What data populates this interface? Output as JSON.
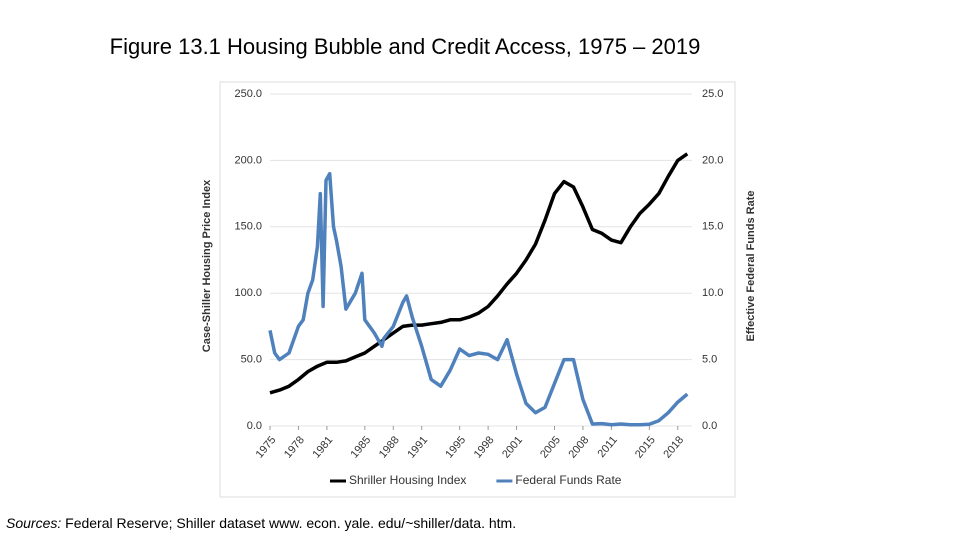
{
  "chart_data": {
    "type": "line",
    "title": "Figure 13.1 Housing Bubble and Credit Access, 1975 – 2019",
    "ylabel": "Case-Shiller Housing Price Index",
    "y2label": "Effective Federal Funds Rate",
    "source_label": "Sources:",
    "source_text": "Federal Reserve; Shiller dataset www. econ. yale. edu/~shiller/data. htm.",
    "xlim": [
      1975,
      2019.5
    ],
    "xticks": [
      1975,
      1978,
      1981,
      1985,
      1988,
      1991,
      1995,
      1998,
      2001,
      2005,
      2008,
      2011,
      2015,
      2018
    ],
    "ylim": [
      0,
      250
    ],
    "yticks": [
      {
        "value": 0,
        "label": "0.0"
      },
      {
        "value": 50,
        "label": "50.0"
      },
      {
        "value": 100,
        "label": "100.0"
      },
      {
        "value": 150,
        "label": "150.0"
      },
      {
        "value": 200,
        "label": "200.0"
      },
      {
        "value": 250,
        "label": "250.0"
      }
    ],
    "y2lim": [
      0,
      25
    ],
    "y2ticks": [
      {
        "value": 0,
        "label": "0.0"
      },
      {
        "value": 5,
        "label": "5.0"
      },
      {
        "value": 10,
        "label": "10.0"
      },
      {
        "value": 15,
        "label": "15.0"
      },
      {
        "value": 20,
        "label": "20.0"
      },
      {
        "value": 25,
        "label": "25.0"
      }
    ],
    "grid": true,
    "legend": "bottom",
    "series": [
      {
        "name": "Shriller Housing Index",
        "color": "#000000",
        "x": [
          1975,
          1976,
          1977,
          1978,
          1979,
          1980,
          1981,
          1982,
          1983,
          1984,
          1985,
          1986,
          1987,
          1988,
          1989,
          1990,
          1991,
          1992,
          1993,
          1994,
          1995,
          1996,
          1997,
          1998,
          1999,
          2000,
          2001,
          2002,
          2003,
          2004,
          2005,
          2006,
          2007,
          2008,
          2009,
          2010,
          2011,
          2012,
          2013,
          2014,
          2015,
          2016,
          2017,
          2018,
          2019
        ],
        "values": [
          25,
          27,
          30,
          35,
          41,
          45,
          48,
          48,
          49,
          52,
          55,
          60,
          65,
          70,
          75,
          76,
          76,
          77,
          78,
          80,
          80,
          82,
          85,
          90,
          98,
          107,
          115,
          125,
          137,
          155,
          175,
          184,
          180,
          165,
          148,
          145,
          140,
          138,
          150,
          160,
          167,
          175,
          188,
          200,
          205
        ]
      },
      {
        "name": "Federal Funds Rate",
        "color": "#4f81bd",
        "axis": "y2",
        "x": [
          1975,
          1975.5,
          1976,
          1977,
          1977.5,
          1978,
          1978.5,
          1979,
          1979.5,
          1980,
          1980.3,
          1980.6,
          1980.9,
          1981.3,
          1981.7,
          1982,
          1982.5,
          1983,
          1984,
          1984.7,
          1985,
          1986,
          1986.8,
          1987,
          1988,
          1989,
          1989.4,
          1990,
          1991,
          1992,
          1993,
          1994,
          1995,
          1996,
          1997,
          1998,
          1999,
          2000,
          2001,
          2002,
          2003,
          2004,
          2005,
          2006,
          2007,
          2008,
          2009,
          2010,
          2011,
          2012,
          2013,
          2014,
          2015,
          2016,
          2017,
          2018,
          2019
        ],
        "values": [
          7.2,
          5.5,
          5.0,
          5.5,
          6.5,
          7.5,
          8,
          10,
          11,
          13.5,
          17.5,
          9,
          18.5,
          19,
          15,
          14,
          12,
          8.8,
          10,
          11.5,
          8,
          7,
          6,
          6.6,
          7.5,
          9.3,
          9.8,
          8.2,
          6,
          3.5,
          3,
          4.2,
          5.8,
          5.3,
          5.5,
          5.4,
          5.0,
          6.5,
          3.9,
          1.7,
          1.0,
          1.4,
          3.2,
          5.0,
          5.0,
          2.0,
          0.15,
          0.18,
          0.1,
          0.15,
          0.1,
          0.1,
          0.13,
          0.4,
          1.0,
          1.8,
          2.4
        ]
      }
    ]
  }
}
